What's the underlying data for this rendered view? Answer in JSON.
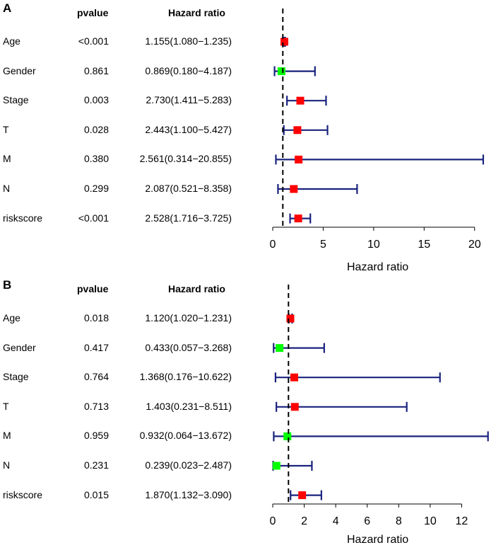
{
  "chart_data": [
    {
      "type": "forest",
      "panel_label": "A",
      "col_pvalue": "pvalue",
      "col_hr": "Hazard ratio",
      "xlabel": "Hazard ratio",
      "xlim": [
        0,
        21
      ],
      "ticks": [
        0,
        5,
        10,
        15,
        20
      ],
      "reference_line": 1,
      "rows": [
        {
          "name": "Age",
          "pvalue": "<0.001",
          "hr_text": "1.155(1.080−1.235)",
          "hr": 1.155,
          "lo": 1.08,
          "hi": 1.235,
          "color": "#ff0000"
        },
        {
          "name": "Gender",
          "pvalue": "0.861",
          "hr_text": "0.869(0.180−4.187)",
          "hr": 0.869,
          "lo": 0.18,
          "hi": 4.187,
          "color": "#00ff00"
        },
        {
          "name": "Stage",
          "pvalue": "0.003",
          "hr_text": "2.730(1.411−5.283)",
          "hr": 2.73,
          "lo": 1.411,
          "hi": 5.283,
          "color": "#ff0000"
        },
        {
          "name": "T",
          "pvalue": "0.028",
          "hr_text": "2.443(1.100−5.427)",
          "hr": 2.443,
          "lo": 1.1,
          "hi": 5.427,
          "color": "#ff0000"
        },
        {
          "name": "M",
          "pvalue": "0.380",
          "hr_text": "2.561(0.314−20.855)",
          "hr": 2.561,
          "lo": 0.314,
          "hi": 20.855,
          "color": "#ff0000"
        },
        {
          "name": "N",
          "pvalue": "0.299",
          "hr_text": "2.087(0.521−8.358)",
          "hr": 2.087,
          "lo": 0.521,
          "hi": 8.358,
          "color": "#ff0000"
        },
        {
          "name": "riskscore",
          "pvalue": "<0.001",
          "hr_text": "2.528(1.716−3.725)",
          "hr": 2.528,
          "lo": 1.716,
          "hi": 3.725,
          "color": "#ff0000"
        }
      ]
    },
    {
      "type": "forest",
      "panel_label": "B",
      "col_pvalue": "pvalue",
      "col_hr": "Hazard ratio",
      "xlabel": "Hazard ratio",
      "xlim": [
        0,
        14
      ],
      "ticks": [
        0,
        2,
        4,
        6,
        8,
        10,
        12
      ],
      "reference_line": 1,
      "rows": [
        {
          "name": "Age",
          "pvalue": "0.018",
          "hr_text": "1.120(1.020−1.231)",
          "hr": 1.12,
          "lo": 1.02,
          "hi": 1.231,
          "color": "#ff0000"
        },
        {
          "name": "Gender",
          "pvalue": "0.417",
          "hr_text": "0.433(0.057−3.268)",
          "hr": 0.433,
          "lo": 0.057,
          "hi": 3.268,
          "color": "#00ff00"
        },
        {
          "name": "Stage",
          "pvalue": "0.764",
          "hr_text": "1.368(0.176−10.622)",
          "hr": 1.368,
          "lo": 0.176,
          "hi": 10.622,
          "color": "#ff0000"
        },
        {
          "name": "T",
          "pvalue": "0.713",
          "hr_text": "1.403(0.231−8.511)",
          "hr": 1.403,
          "lo": 0.231,
          "hi": 8.511,
          "color": "#ff0000"
        },
        {
          "name": "M",
          "pvalue": "0.959",
          "hr_text": "0.932(0.064−13.672)",
          "hr": 0.932,
          "lo": 0.064,
          "hi": 13.672,
          "color": "#00ff00"
        },
        {
          "name": "N",
          "pvalue": "0.231",
          "hr_text": "0.239(0.023−2.487)",
          "hr": 0.239,
          "lo": 0.023,
          "hi": 2.487,
          "color": "#00ff00"
        },
        {
          "name": "riskscore",
          "pvalue": "0.015",
          "hr_text": "1.870(1.132−3.090)",
          "hr": 1.87,
          "lo": 1.132,
          "hi": 3.09,
          "color": "#ff0000"
        }
      ]
    }
  ]
}
